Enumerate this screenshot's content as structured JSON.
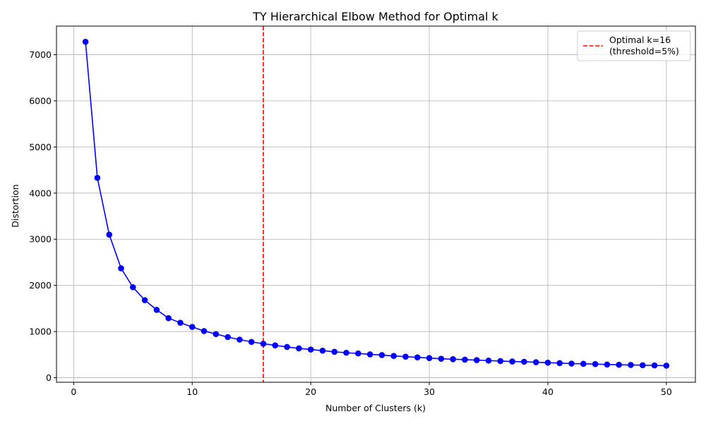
{
  "chart_data": {
    "type": "line",
    "title": "TY Hierarchical Elbow Method for Optimal k",
    "xlabel": "Number of Clusters (k)",
    "ylabel": "Distortion",
    "xlim": [
      -1.45,
      52.45
    ],
    "ylim": [
      -100,
      7620
    ],
    "x_ticks": [
      0,
      10,
      20,
      30,
      40,
      50
    ],
    "y_ticks": [
      0,
      1000,
      2000,
      3000,
      4000,
      5000,
      6000,
      7000
    ],
    "grid": true,
    "legend_position": "top-right",
    "series": [
      {
        "color": "#0000ff",
        "marker": "circle",
        "x": [
          1,
          2,
          3,
          4,
          5,
          6,
          7,
          8,
          9,
          10,
          11,
          12,
          13,
          14,
          15,
          16,
          17,
          18,
          19,
          20,
          21,
          22,
          23,
          24,
          25,
          26,
          27,
          28,
          29,
          30,
          31,
          32,
          33,
          34,
          35,
          36,
          37,
          38,
          39,
          40,
          41,
          42,
          43,
          44,
          45,
          46,
          47,
          48,
          49,
          50
        ],
        "values": [
          7280,
          4330,
          3100,
          2370,
          1960,
          1680,
          1470,
          1290,
          1190,
          1100,
          1010,
          945,
          880,
          825,
          775,
          735,
          700,
          665,
          635,
          610,
          585,
          560,
          540,
          525,
          505,
          490,
          470,
          455,
          440,
          425,
          410,
          400,
          390,
          380,
          370,
          360,
          350,
          345,
          335,
          325,
          315,
          305,
          300,
          295,
          285,
          280,
          275,
          270,
          265,
          260
        ]
      }
    ],
    "vline": {
      "x": 16,
      "color": "#ff0000",
      "label_line1": "Optimal k=16",
      "label_line2": "(threshold=5%)"
    }
  }
}
